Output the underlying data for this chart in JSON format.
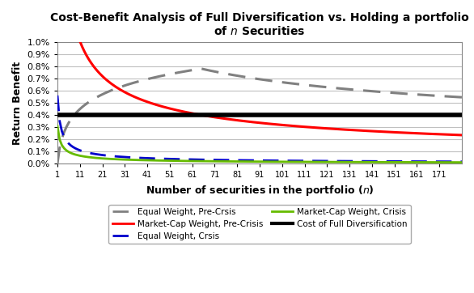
{
  "title": "Cost-Benefit Analysis of Full Diversification vs. Holding a portfolio\nof $n$ Securities",
  "xlabel": "Number of securities in the portfolio ($n$)",
  "ylabel": "Return Benefit",
  "ylim_pct": [
    0.0,
    1.0
  ],
  "xlim": [
    1,
    181
  ],
  "x_ticks": [
    1,
    11,
    21,
    31,
    41,
    51,
    61,
    71,
    81,
    91,
    101,
    111,
    121,
    131,
    141,
    151,
    161,
    171
  ],
  "cost_of_full_div_pct": 0.4,
  "colors": {
    "eq_precrisis": "#808080",
    "mc_precrisis": "#ff0000",
    "eq_crisis": "#0000cc",
    "mc_crisis": "#66bb00",
    "cost_div": "#000000"
  },
  "legend_labels": [
    "Equal Weight, Pre-Crsis",
    "Market-Cap Weight, Pre-Crisis",
    "Equal Weight, Crsis",
    "Market-Cap Weight, Crisis",
    "Cost of Full Diversification"
  ],
  "background_color": "#ffffff",
  "grid_color": "#c0c0c0",
  "curve_params": {
    "mc_pre_A": 3.5,
    "mc_pre_exp": 0.52,
    "ew_pre_peak_n": 65,
    "ew_pre_peak_v": 0.78,
    "ew_pre_decay_exp": 0.35,
    "ew_cr_A": 0.56,
    "ew_cr_exp": 0.68,
    "mc_cr_A": 0.31,
    "mc_cr_exp": 0.65
  }
}
